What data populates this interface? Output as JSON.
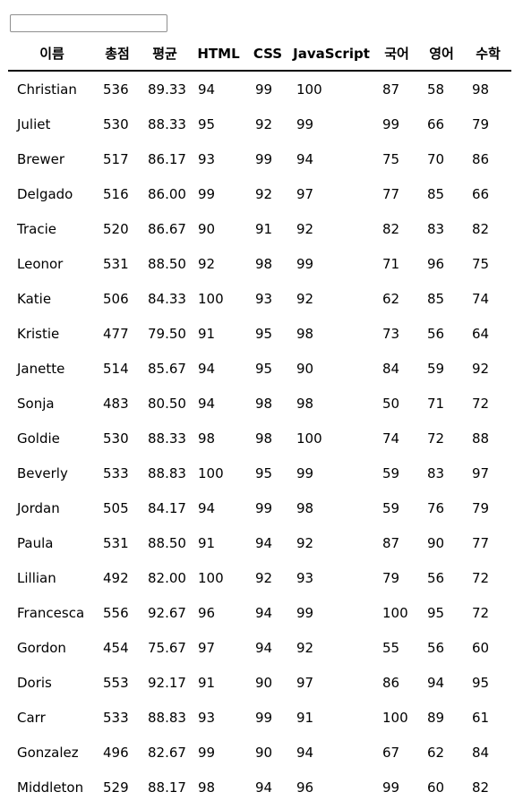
{
  "search": {
    "value": "",
    "placeholder": ""
  },
  "table": {
    "headers": [
      "이름",
      "총점",
      "평균",
      "HTML",
      "CSS",
      "JavaScript",
      "국어",
      "영어",
      "수학"
    ],
    "rows": [
      [
        "Christian",
        "536",
        "89.33",
        "94",
        "99",
        "100",
        "87",
        "58",
        "98"
      ],
      [
        "Juliet",
        "530",
        "88.33",
        "95",
        "92",
        "99",
        "99",
        "66",
        "79"
      ],
      [
        "Brewer",
        "517",
        "86.17",
        "93",
        "99",
        "94",
        "75",
        "70",
        "86"
      ],
      [
        "Delgado",
        "516",
        "86.00",
        "99",
        "92",
        "97",
        "77",
        "85",
        "66"
      ],
      [
        "Tracie",
        "520",
        "86.67",
        "90",
        "91",
        "92",
        "82",
        "83",
        "82"
      ],
      [
        "Leonor",
        "531",
        "88.50",
        "92",
        "98",
        "99",
        "71",
        "96",
        "75"
      ],
      [
        "Katie",
        "506",
        "84.33",
        "100",
        "93",
        "92",
        "62",
        "85",
        "74"
      ],
      [
        "Kristie",
        "477",
        "79.50",
        "91",
        "95",
        "98",
        "73",
        "56",
        "64"
      ],
      [
        "Janette",
        "514",
        "85.67",
        "94",
        "95",
        "90",
        "84",
        "59",
        "92"
      ],
      [
        "Sonja",
        "483",
        "80.50",
        "94",
        "98",
        "98",
        "50",
        "71",
        "72"
      ],
      [
        "Goldie",
        "530",
        "88.33",
        "98",
        "98",
        "100",
        "74",
        "72",
        "88"
      ],
      [
        "Beverly",
        "533",
        "88.83",
        "100",
        "95",
        "99",
        "59",
        "83",
        "97"
      ],
      [
        "Jordan",
        "505",
        "84.17",
        "94",
        "99",
        "98",
        "59",
        "76",
        "79"
      ],
      [
        "Paula",
        "531",
        "88.50",
        "91",
        "94",
        "92",
        "87",
        "90",
        "77"
      ],
      [
        "Lillian",
        "492",
        "82.00",
        "100",
        "92",
        "93",
        "79",
        "56",
        "72"
      ],
      [
        "Francesca",
        "556",
        "92.67",
        "96",
        "94",
        "99",
        "100",
        "95",
        "72"
      ],
      [
        "Gordon",
        "454",
        "75.67",
        "97",
        "94",
        "92",
        "55",
        "56",
        "60"
      ],
      [
        "Doris",
        "553",
        "92.17",
        "91",
        "90",
        "97",
        "86",
        "94",
        "95"
      ],
      [
        "Carr",
        "533",
        "88.83",
        "93",
        "99",
        "91",
        "100",
        "89",
        "61"
      ],
      [
        "Gonzalez",
        "496",
        "82.67",
        "99",
        "90",
        "94",
        "67",
        "62",
        "84"
      ],
      [
        "Middleton",
        "529",
        "88.17",
        "98",
        "94",
        "96",
        "99",
        "60",
        "82"
      ]
    ]
  }
}
